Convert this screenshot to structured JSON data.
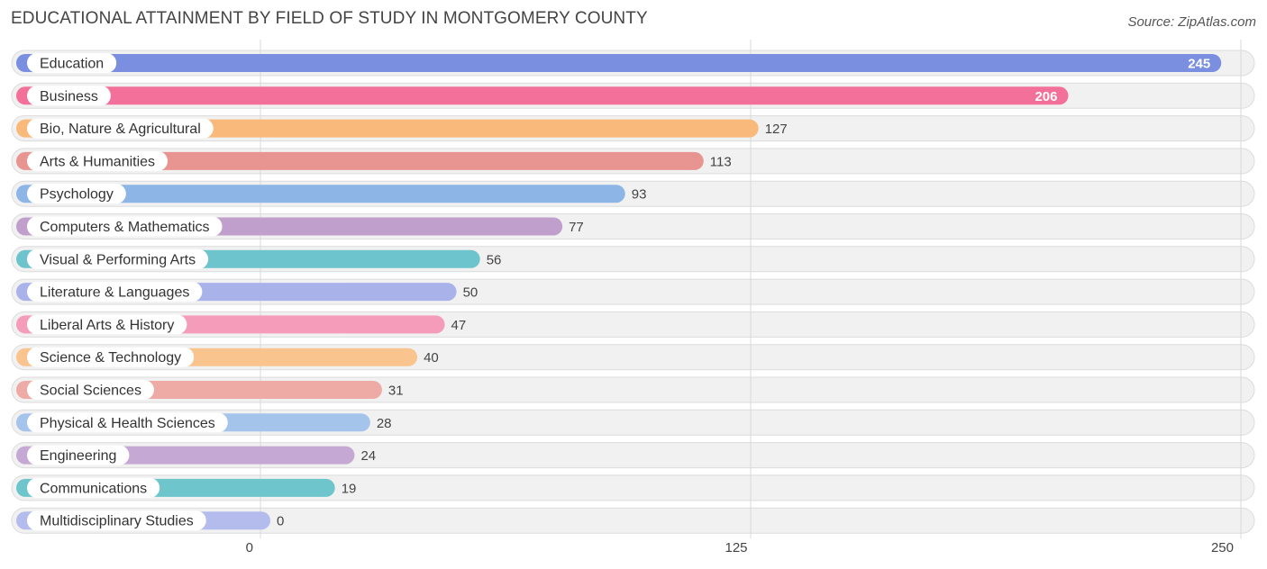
{
  "title": "EDUCATIONAL ATTAINMENT BY FIELD OF STUDY IN MONTGOMERY COUNTY",
  "source": "Source: ZipAtlas.com",
  "chart_data": {
    "type": "bar",
    "orientation": "horizontal",
    "title": "EDUCATIONAL ATTAINMENT BY FIELD OF STUDY IN MONTGOMERY COUNTY",
    "xlim": [
      0,
      250
    ],
    "xticks": [
      0,
      125,
      250
    ],
    "categories": [
      "Education",
      "Business",
      "Bio, Nature & Agricultural",
      "Arts & Humanities",
      "Psychology",
      "Computers & Mathematics",
      "Visual & Performing Arts",
      "Literature & Languages",
      "Liberal Arts & History",
      "Science & Technology",
      "Social Sciences",
      "Physical & Health Sciences",
      "Engineering",
      "Communications",
      "Multidisciplinary Studies"
    ],
    "values": [
      245,
      206,
      127,
      113,
      93,
      77,
      56,
      50,
      47,
      40,
      31,
      28,
      24,
      19,
      0
    ],
    "colors": [
      "#7b8fe0",
      "#f2709a",
      "#f9b97a",
      "#e89490",
      "#8db6e6",
      "#c19fcc",
      "#6ec4cc",
      "#a9b3ea",
      "#f59cba",
      "#f9c48e",
      "#eeaaa4",
      "#a4c4ec",
      "#c6a8d4",
      "#6ec6cc",
      "#b4bcee"
    ]
  }
}
